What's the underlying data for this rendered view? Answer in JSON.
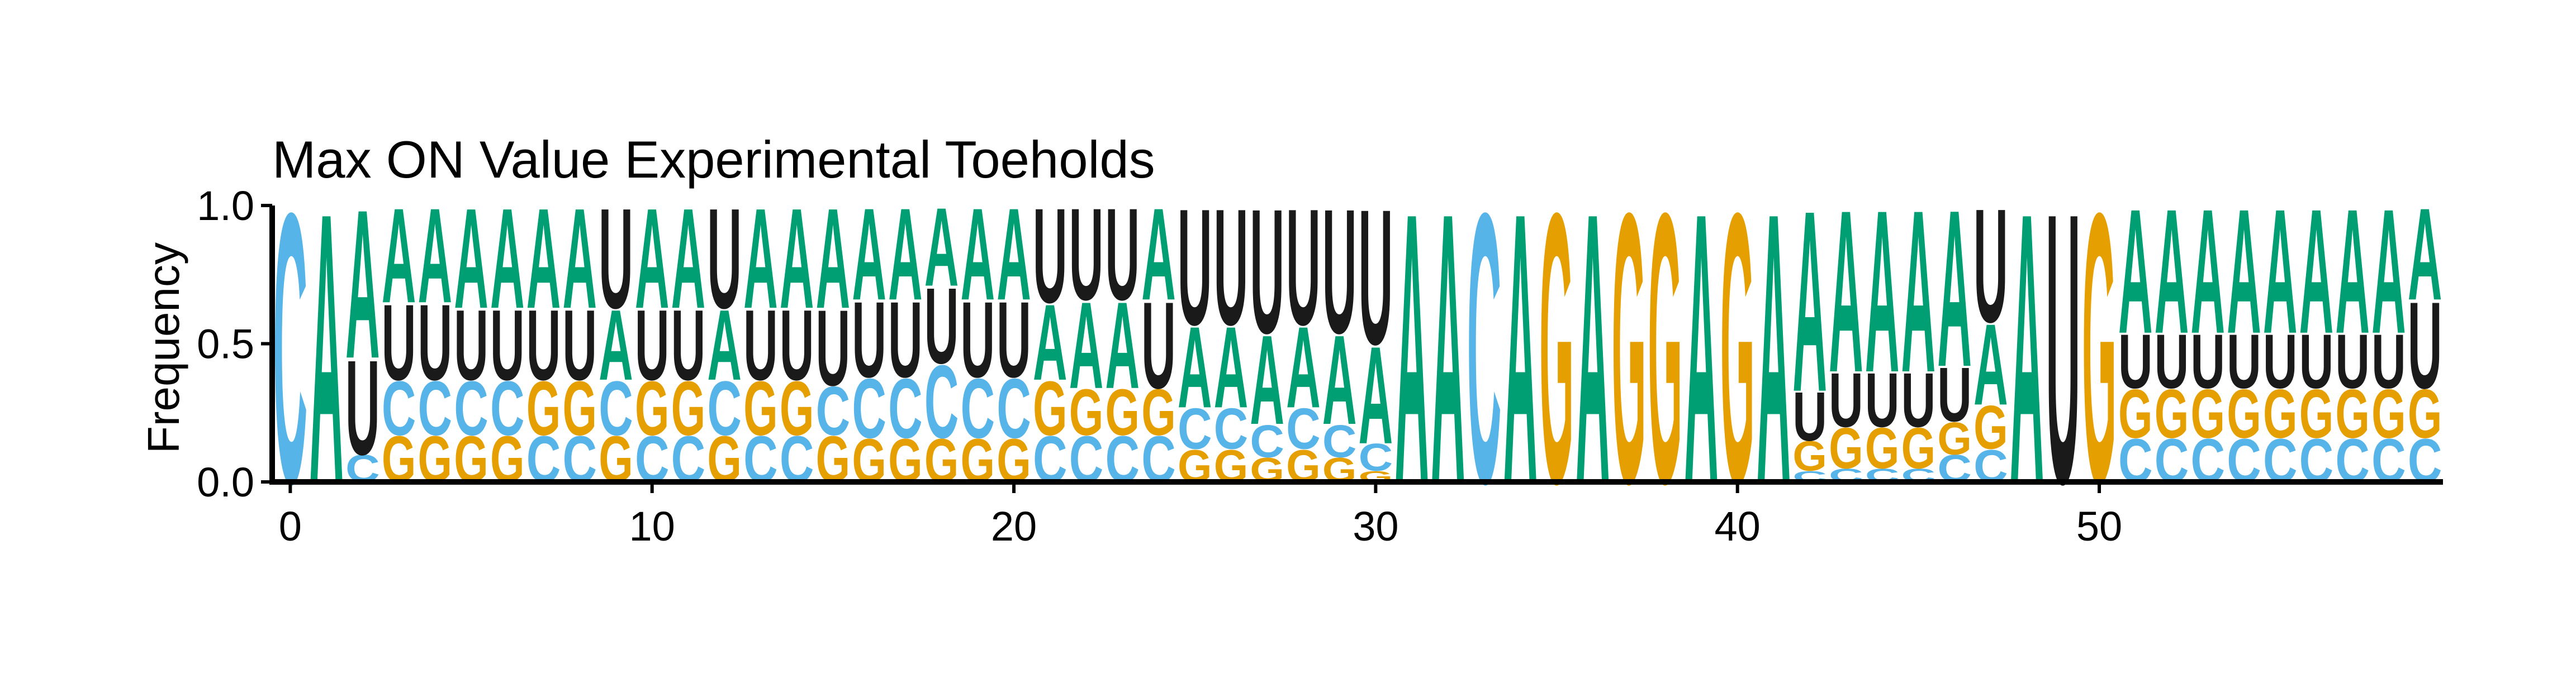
{
  "chart_data": {
    "type": "sequence-logo",
    "title": "Max ON Value Experimental Toeholds",
    "xlabel": "",
    "ylabel": "Frequency",
    "xlim": [
      -0.5,
      59.5
    ],
    "ylim": [
      0,
      1
    ],
    "x_ticks": [
      0,
      10,
      20,
      30,
      40,
      50
    ],
    "x_tick_labels": [
      "0",
      "10",
      "20",
      "30",
      "40",
      "50"
    ],
    "y_ticks": [
      0,
      0.5,
      1
    ],
    "y_tick_labels": [
      "0.0",
      "0.5",
      "1.0"
    ],
    "colors": {
      "A": "#009e73",
      "C": "#56b4e9",
      "G": "#e69f00",
      "U": "#1a1a1a"
    },
    "positions": [
      {
        "pos": 0,
        "A": 0.0,
        "C": 1.0,
        "G": 0.0,
        "U": 0.0
      },
      {
        "pos": 1,
        "A": 1.0,
        "C": 0.0,
        "G": 0.0,
        "U": 0.0
      },
      {
        "pos": 2,
        "A": 0.55,
        "C": 0.1,
        "G": 0.0,
        "U": 0.35
      },
      {
        "pos": 3,
        "A": 0.35,
        "C": 0.2,
        "G": 0.17,
        "U": 0.28
      },
      {
        "pos": 4,
        "A": 0.35,
        "C": 0.2,
        "G": 0.17,
        "U": 0.28
      },
      {
        "pos": 5,
        "A": 0.37,
        "C": 0.2,
        "G": 0.17,
        "U": 0.26
      },
      {
        "pos": 6,
        "A": 0.37,
        "C": 0.2,
        "G": 0.17,
        "U": 0.26
      },
      {
        "pos": 7,
        "A": 0.37,
        "C": 0.17,
        "G": 0.2,
        "U": 0.26
      },
      {
        "pos": 8,
        "A": 0.37,
        "C": 0.17,
        "G": 0.2,
        "U": 0.26
      },
      {
        "pos": 9,
        "A": 0.26,
        "C": 0.2,
        "G": 0.17,
        "U": 0.37
      },
      {
        "pos": 10,
        "A": 0.37,
        "C": 0.17,
        "G": 0.2,
        "U": 0.26
      },
      {
        "pos": 11,
        "A": 0.37,
        "C": 0.17,
        "G": 0.2,
        "U": 0.26
      },
      {
        "pos": 12,
        "A": 0.26,
        "C": 0.2,
        "G": 0.17,
        "U": 0.37
      },
      {
        "pos": 13,
        "A": 0.37,
        "C": 0.17,
        "G": 0.2,
        "U": 0.26
      },
      {
        "pos": 14,
        "A": 0.37,
        "C": 0.17,
        "G": 0.2,
        "U": 0.26
      },
      {
        "pos": 15,
        "A": 0.37,
        "C": 0.18,
        "G": 0.17,
        "U": 0.28
      },
      {
        "pos": 16,
        "A": 0.34,
        "C": 0.22,
        "G": 0.16,
        "U": 0.28
      },
      {
        "pos": 17,
        "A": 0.34,
        "C": 0.22,
        "G": 0.16,
        "U": 0.28
      },
      {
        "pos": 18,
        "A": 0.29,
        "C": 0.27,
        "G": 0.16,
        "U": 0.28
      },
      {
        "pos": 19,
        "A": 0.34,
        "C": 0.22,
        "G": 0.16,
        "U": 0.28
      },
      {
        "pos": 20,
        "A": 0.34,
        "C": 0.22,
        "G": 0.16,
        "U": 0.28
      },
      {
        "pos": 21,
        "A": 0.28,
        "C": 0.17,
        "G": 0.2,
        "U": 0.35
      },
      {
        "pos": 22,
        "A": 0.32,
        "C": 0.17,
        "G": 0.17,
        "U": 0.34
      },
      {
        "pos": 23,
        "A": 0.32,
        "C": 0.17,
        "G": 0.17,
        "U": 0.34
      },
      {
        "pos": 24,
        "A": 0.34,
        "C": 0.17,
        "G": 0.17,
        "U": 0.32
      },
      {
        "pos": 25,
        "A": 0.3,
        "C": 0.15,
        "G": 0.12,
        "U": 0.43
      },
      {
        "pos": 26,
        "A": 0.3,
        "C": 0.15,
        "G": 0.12,
        "U": 0.43
      },
      {
        "pos": 27,
        "A": 0.33,
        "C": 0.12,
        "G": 0.09,
        "U": 0.46
      },
      {
        "pos": 28,
        "A": 0.3,
        "C": 0.15,
        "G": 0.12,
        "U": 0.43
      },
      {
        "pos": 29,
        "A": 0.33,
        "C": 0.12,
        "G": 0.09,
        "U": 0.46
      },
      {
        "pos": 30,
        "A": 0.36,
        "C": 0.1,
        "G": 0.04,
        "U": 0.5
      },
      {
        "pos": 31,
        "A": 1.0,
        "C": 0.0,
        "G": 0.0,
        "U": 0.0
      },
      {
        "pos": 32,
        "A": 1.0,
        "C": 0.0,
        "G": 0.0,
        "U": 0.0
      },
      {
        "pos": 33,
        "A": 0.0,
        "C": 1.0,
        "G": 0.0,
        "U": 0.0
      },
      {
        "pos": 34,
        "A": 1.0,
        "C": 0.0,
        "G": 0.0,
        "U": 0.0
      },
      {
        "pos": 35,
        "A": 0.0,
        "C": 0.0,
        "G": 1.0,
        "U": 0.0
      },
      {
        "pos": 36,
        "A": 1.0,
        "C": 0.0,
        "G": 0.0,
        "U": 0.0
      },
      {
        "pos": 37,
        "A": 0.0,
        "C": 0.0,
        "G": 1.0,
        "U": 0.0
      },
      {
        "pos": 38,
        "A": 0.0,
        "C": 0.0,
        "G": 1.0,
        "U": 0.0
      },
      {
        "pos": 39,
        "A": 1.0,
        "C": 0.0,
        "G": 0.0,
        "U": 0.0
      },
      {
        "pos": 40,
        "A": 0.0,
        "C": 0.0,
        "G": 1.0,
        "U": 0.0
      },
      {
        "pos": 41,
        "A": 1.0,
        "C": 0.0,
        "G": 0.0,
        "U": 0.0
      },
      {
        "pos": 42,
        "A": 0.67,
        "C": 0.04,
        "G": 0.11,
        "U": 0.18
      },
      {
        "pos": 43,
        "A": 0.6,
        "C": 0.05,
        "G": 0.15,
        "U": 0.2
      },
      {
        "pos": 44,
        "A": 0.6,
        "C": 0.05,
        "G": 0.15,
        "U": 0.2
      },
      {
        "pos": 45,
        "A": 0.6,
        "C": 0.05,
        "G": 0.15,
        "U": 0.2
      },
      {
        "pos": 46,
        "A": 0.58,
        "C": 0.1,
        "G": 0.12,
        "U": 0.2
      },
      {
        "pos": 47,
        "A": 0.3,
        "C": 0.12,
        "G": 0.16,
        "U": 0.42
      },
      {
        "pos": 48,
        "A": 1.0,
        "C": 0.0,
        "G": 0.0,
        "U": 0.0
      },
      {
        "pos": 49,
        "A": 0.0,
        "C": 0.0,
        "G": 0.0,
        "U": 1.0
      },
      {
        "pos": 50,
        "A": 0.0,
        "C": 0.0,
        "G": 1.0,
        "U": 0.0
      },
      {
        "pos": 51,
        "A": 0.46,
        "C": 0.16,
        "G": 0.18,
        "U": 0.2
      },
      {
        "pos": 52,
        "A": 0.46,
        "C": 0.16,
        "G": 0.18,
        "U": 0.2
      },
      {
        "pos": 53,
        "A": 0.46,
        "C": 0.16,
        "G": 0.18,
        "U": 0.2
      },
      {
        "pos": 54,
        "A": 0.46,
        "C": 0.16,
        "G": 0.18,
        "U": 0.2
      },
      {
        "pos": 55,
        "A": 0.46,
        "C": 0.16,
        "G": 0.18,
        "U": 0.2
      },
      {
        "pos": 56,
        "A": 0.46,
        "C": 0.16,
        "G": 0.18,
        "U": 0.2
      },
      {
        "pos": 57,
        "A": 0.46,
        "C": 0.16,
        "G": 0.18,
        "U": 0.2
      },
      {
        "pos": 58,
        "A": 0.46,
        "C": 0.16,
        "G": 0.18,
        "U": 0.2
      },
      {
        "pos": 59,
        "A": 0.34,
        "C": 0.16,
        "G": 0.18,
        "U": 0.32
      }
    ]
  }
}
